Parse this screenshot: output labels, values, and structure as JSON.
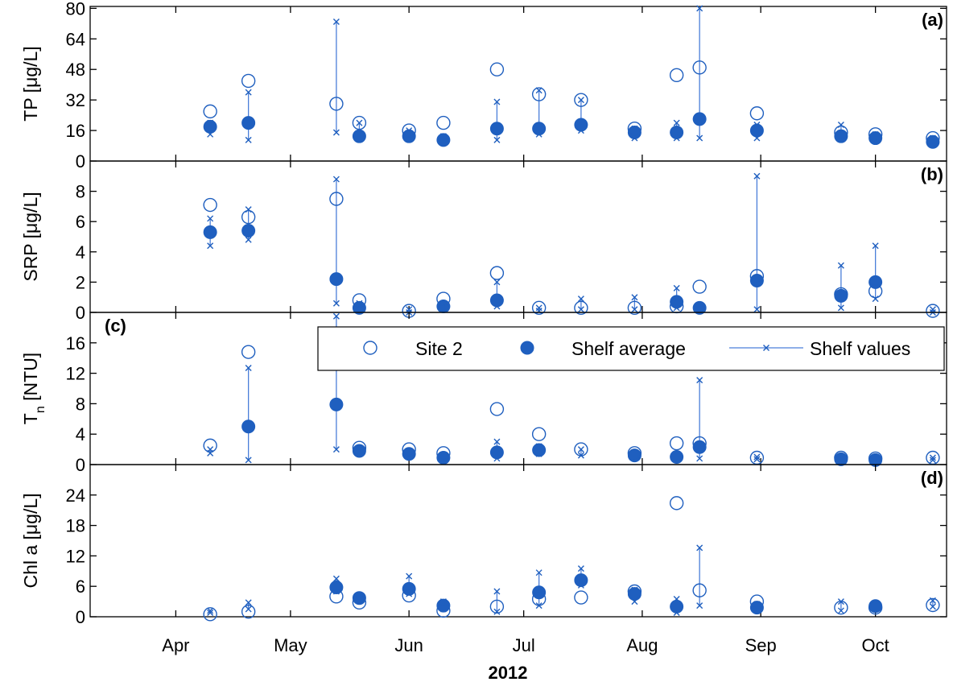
{
  "chart_data": {
    "type": "scatter",
    "xlabel": "2012",
    "months": [
      {
        "label": "Apr",
        "day": 15
      },
      {
        "label": "May",
        "day": 45
      },
      {
        "label": "Jun",
        "day": 76
      },
      {
        "label": "Jul",
        "day": 106
      },
      {
        "label": "Aug",
        "day": 137
      },
      {
        "label": "Sep",
        "day": 168
      },
      {
        "label": "Oct",
        "day": 198
      }
    ],
    "xlim": [
      -7.4,
      216.6
    ],
    "legend": {
      "placement": "inside panel (c), top-right",
      "entries": [
        "Site 2",
        "Shelf average",
        "Shelf values"
      ]
    },
    "colors": {
      "series": "#1F5FBF",
      "line": "#4A7FD9"
    },
    "panels": [
      {
        "tag": "(a)",
        "ylabel": "TP [μg/L]",
        "ylim": [
          0,
          81
        ],
        "yticks": [
          0,
          16,
          32,
          48,
          64,
          80
        ],
        "dates": [
          24,
          34,
          57,
          63,
          76,
          85,
          99,
          110,
          121,
          135,
          146,
          152,
          167,
          189,
          198,
          213
        ],
        "site2": [
          26,
          42,
          30,
          20,
          16,
          20,
          48,
          35,
          32,
          17,
          45,
          49,
          25,
          15,
          14,
          12
        ],
        "shelf_avg": [
          18,
          20,
          null,
          13,
          13,
          11,
          17,
          17,
          19,
          15,
          15,
          22,
          16,
          13,
          12,
          10
        ],
        "shelf_values": [
          [
            14,
            20
          ],
          [
            11,
            36
          ],
          [
            15,
            73
          ],
          [
            13,
            20
          ],
          [
            12,
            16
          ],
          [
            10,
            13
          ],
          [
            11,
            31
          ],
          [
            14,
            37
          ],
          [
            16,
            32
          ],
          [
            12,
            17
          ],
          [
            12,
            20
          ],
          [
            12,
            80
          ],
          [
            12,
            19
          ],
          [
            13,
            19
          ],
          [
            11,
            14
          ],
          [
            9,
            12
          ]
        ]
      },
      {
        "tag": "(b)",
        "ylabel": "SRP [μg/L]",
        "ylim": [
          0,
          10
        ],
        "yticks": [
          0,
          2,
          4,
          6,
          8
        ],
        "dates": [
          24,
          34,
          57,
          63,
          76,
          85,
          99,
          110,
          121,
          135,
          146,
          152,
          167,
          189,
          198,
          213
        ],
        "site2": [
          7.1,
          6.3,
          7.5,
          0.8,
          0.1,
          0.9,
          2.6,
          0.3,
          0.3,
          0.3,
          0.4,
          1.7,
          2.4,
          1.2,
          1.4,
          0.1
        ],
        "shelf_avg": [
          5.3,
          5.4,
          2.2,
          0.3,
          null,
          0.4,
          0.8,
          null,
          null,
          null,
          0.7,
          0.3,
          2.1,
          1.1,
          2.0,
          null
        ],
        "shelf_values": [
          [
            4.4,
            6.2
          ],
          [
            4.8,
            6.8
          ],
          [
            0.6,
            8.8
          ],
          [
            0.2,
            0.6
          ],
          [
            0.0,
            0.2
          ],
          [
            0.2,
            0.5
          ],
          [
            0.4,
            2.0
          ],
          [
            0.1,
            0.3
          ],
          [
            0.2,
            0.9
          ],
          [
            0.2,
            1.0
          ],
          [
            0.3,
            1.6
          ],
          [
            0.1,
            0.4
          ],
          [
            0.2,
            9.0
          ],
          [
            0.3,
            3.1
          ],
          [
            0.9,
            4.4
          ],
          [
            0.0,
            0.2
          ]
        ]
      },
      {
        "tag": "(c)",
        "ylabel": "T",
        "ylabel_sub": "n",
        "ylabel_unit": " [NTU]",
        "ylim": [
          0,
          20
        ],
        "yticks": [
          0,
          4,
          8,
          12,
          16
        ],
        "dates": [
          24,
          34,
          57,
          63,
          76,
          85,
          99,
          110,
          121,
          135,
          146,
          152,
          167,
          189,
          198,
          213
        ],
        "site2": [
          2.5,
          14.8,
          16.3,
          2.2,
          2.0,
          1.5,
          7.3,
          4.0,
          2.0,
          1.5,
          2.8,
          2.8,
          0.9,
          0.9,
          0.8,
          0.9
        ],
        "shelf_avg": [
          null,
          5.0,
          7.9,
          1.8,
          1.4,
          0.9,
          1.6,
          1.9,
          null,
          1.2,
          1.0,
          2.3,
          null,
          0.7,
          0.6,
          null
        ],
        "shelf_values": [
          [
            1.5,
            2.0
          ],
          [
            0.6,
            12.7
          ],
          [
            2.0,
            19.5
          ],
          [
            1.4,
            2.0
          ],
          [
            1.0,
            1.8
          ],
          [
            0.7,
            1.2
          ],
          [
            0.8,
            3.0
          ],
          [
            1.4,
            2.4
          ],
          [
            1.2,
            2.0
          ],
          [
            0.9,
            1.4
          ],
          [
            0.8,
            1.2
          ],
          [
            0.8,
            11.1
          ],
          [
            0.7,
            1.0
          ],
          [
            0.5,
            1.0
          ],
          [
            0.4,
            0.8
          ],
          [
            0.6,
            0.9
          ]
        ]
      },
      {
        "tag": "(d)",
        "ylabel": "Chl a [μg/L]",
        "ylim": [
          0,
          30
        ],
        "yticks": [
          0,
          6,
          12,
          18,
          24
        ],
        "dates": [
          24,
          34,
          57,
          63,
          76,
          85,
          99,
          110,
          121,
          135,
          146,
          152,
          167,
          189,
          198,
          213
        ],
        "site2": [
          0.5,
          1.0,
          4.0,
          2.8,
          4.2,
          1.2,
          2.0,
          3.5,
          3.8,
          5.0,
          22.4,
          5.2,
          3.0,
          1.8,
          1.8,
          2.3
        ],
        "shelf_avg": [
          null,
          null,
          5.8,
          3.7,
          5.5,
          2.2,
          null,
          4.8,
          7.2,
          4.5,
          2.0,
          null,
          1.8,
          null,
          2.1,
          null
        ],
        "shelf_values": [
          [
            0.8,
            1.2
          ],
          [
            1.5,
            2.8
          ],
          [
            5.0,
            7.5
          ],
          [
            3.2,
            4.0
          ],
          [
            4.5,
            8.0
          ],
          [
            1.5,
            3.0
          ],
          [
            1.0,
            5.0
          ],
          [
            2.2,
            8.7
          ],
          [
            6.2,
            9.5
          ],
          [
            3.0,
            5.3
          ],
          [
            0.8,
            3.5
          ],
          [
            2.2,
            13.6
          ],
          [
            1.2,
            2.5
          ],
          [
            1.2,
            3.0
          ],
          [
            1.5,
            2.5
          ],
          [
            2.0,
            3.2
          ]
        ]
      }
    ]
  }
}
